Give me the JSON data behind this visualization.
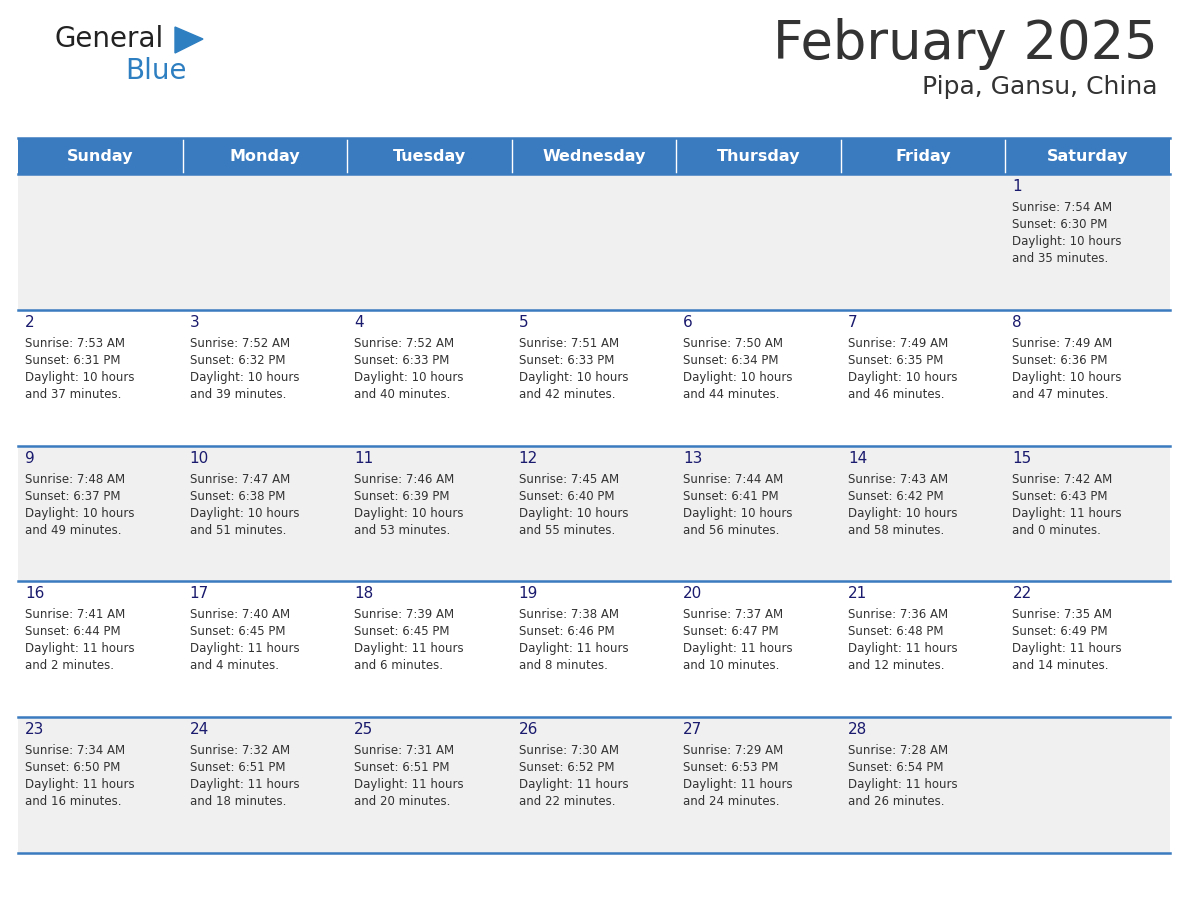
{
  "title": "February 2025",
  "subtitle": "Pipa, Gansu, China",
  "header_bg": "#3a7abf",
  "header_text": "#ffffff",
  "day_names": [
    "Sunday",
    "Monday",
    "Tuesday",
    "Wednesday",
    "Thursday",
    "Friday",
    "Saturday"
  ],
  "bg_color": "#ffffff",
  "cell_bg_odd": "#f0f0f0",
  "cell_bg_even": "#ffffff",
  "cell_border": "#3a7abf",
  "text_color": "#333333",
  "day_num_color": "#1a1a6e",
  "logo_general_color": "#222222",
  "logo_blue_color": "#2e7fc1",
  "calendar": [
    [
      null,
      null,
      null,
      null,
      null,
      null,
      1
    ],
    [
      2,
      3,
      4,
      5,
      6,
      7,
      8
    ],
    [
      9,
      10,
      11,
      12,
      13,
      14,
      15
    ],
    [
      16,
      17,
      18,
      19,
      20,
      21,
      22
    ],
    [
      23,
      24,
      25,
      26,
      27,
      28,
      null
    ]
  ],
  "sunrise": {
    "1": "7:54 AM",
    "2": "7:53 AM",
    "3": "7:52 AM",
    "4": "7:52 AM",
    "5": "7:51 AM",
    "6": "7:50 AM",
    "7": "7:49 AM",
    "8": "7:49 AM",
    "9": "7:48 AM",
    "10": "7:47 AM",
    "11": "7:46 AM",
    "12": "7:45 AM",
    "13": "7:44 AM",
    "14": "7:43 AM",
    "15": "7:42 AM",
    "16": "7:41 AM",
    "17": "7:40 AM",
    "18": "7:39 AM",
    "19": "7:38 AM",
    "20": "7:37 AM",
    "21": "7:36 AM",
    "22": "7:35 AM",
    "23": "7:34 AM",
    "24": "7:32 AM",
    "25": "7:31 AM",
    "26": "7:30 AM",
    "27": "7:29 AM",
    "28": "7:28 AM"
  },
  "sunset": {
    "1": "6:30 PM",
    "2": "6:31 PM",
    "3": "6:32 PM",
    "4": "6:33 PM",
    "5": "6:33 PM",
    "6": "6:34 PM",
    "7": "6:35 PM",
    "8": "6:36 PM",
    "9": "6:37 PM",
    "10": "6:38 PM",
    "11": "6:39 PM",
    "12": "6:40 PM",
    "13": "6:41 PM",
    "14": "6:42 PM",
    "15": "6:43 PM",
    "16": "6:44 PM",
    "17": "6:45 PM",
    "18": "6:45 PM",
    "19": "6:46 PM",
    "20": "6:47 PM",
    "21": "6:48 PM",
    "22": "6:49 PM",
    "23": "6:50 PM",
    "24": "6:51 PM",
    "25": "6:51 PM",
    "26": "6:52 PM",
    "27": "6:53 PM",
    "28": "6:54 PM"
  },
  "daylight": {
    "1": "10 hours and 35 minutes.",
    "2": "10 hours and 37 minutes.",
    "3": "10 hours and 39 minutes.",
    "4": "10 hours and 40 minutes.",
    "5": "10 hours and 42 minutes.",
    "6": "10 hours and 44 minutes.",
    "7": "10 hours and 46 minutes.",
    "8": "10 hours and 47 minutes.",
    "9": "10 hours and 49 minutes.",
    "10": "10 hours and 51 minutes.",
    "11": "10 hours and 53 minutes.",
    "12": "10 hours and 55 minutes.",
    "13": "10 hours and 56 minutes.",
    "14": "10 hours and 58 minutes.",
    "15": "11 hours and 0 minutes.",
    "16": "11 hours and 2 minutes.",
    "17": "11 hours and 4 minutes.",
    "18": "11 hours and 6 minutes.",
    "19": "11 hours and 8 minutes.",
    "20": "11 hours and 10 minutes.",
    "21": "11 hours and 12 minutes.",
    "22": "11 hours and 14 minutes.",
    "23": "11 hours and 16 minutes.",
    "24": "11 hours and 18 minutes.",
    "25": "11 hours and 20 minutes.",
    "26": "11 hours and 22 minutes.",
    "27": "11 hours and 24 minutes.",
    "28": "11 hours and 26 minutes."
  }
}
